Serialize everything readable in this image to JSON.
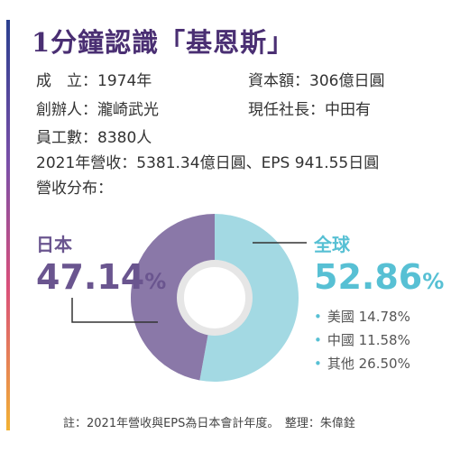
{
  "title": "1分鐘認識「基恩斯」",
  "info": {
    "founded_label": "成　立：",
    "founded_value": "1974年",
    "capital_label": "資本額：",
    "capital_value": "306億日圓",
    "founder_label": "創辦人：",
    "founder_value": "瀧崎武光",
    "president_label": "現任社長：",
    "president_value": "中田有",
    "employees_label": "員工數：",
    "employees_value": "8380人",
    "revenue_line": "2021年營收：5381.34億日圓、EPS 941.55日圓",
    "distribution_label": "營收分布："
  },
  "chart_data": {
    "type": "pie",
    "title": "",
    "slices": [
      {
        "name": "日本",
        "value": 47.14,
        "color": "#8a78a8"
      },
      {
        "name": "全球",
        "value": 52.86,
        "color": "#a3d9e3"
      }
    ],
    "global_breakdown": [
      {
        "name": "美國",
        "value": 14.78
      },
      {
        "name": "中國",
        "value": 11.58
      },
      {
        "name": "其他",
        "value": 26.5
      }
    ],
    "labels": {
      "japan_name": "日本",
      "japan_pct": "47.14",
      "global_name": "全球",
      "global_pct": "52.86",
      "pct_unit": "%",
      "breakdown": [
        "美國 14.78%",
        "中國 11.58%",
        "其他 26.50%"
      ]
    }
  },
  "footer": {
    "note": "註：2021年營收與EPS為日本會計年度。　整理：朱偉銓"
  },
  "colors": {
    "title": "#4a2f73",
    "japan": "#6a558f",
    "global": "#57c0d4"
  }
}
